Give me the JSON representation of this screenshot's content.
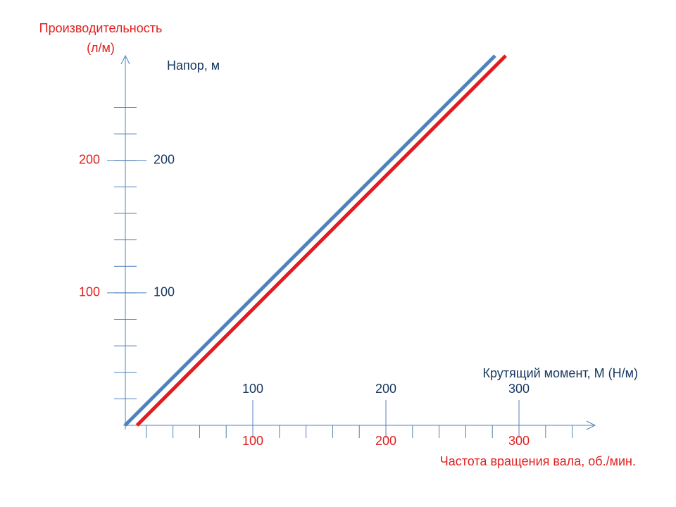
{
  "chart_data": {
    "type": "line",
    "xlim": [
      0,
      355
    ],
    "ylim": [
      0,
      278
    ],
    "x_minor_ticks": [
      20,
      40,
      60,
      80,
      100,
      120,
      140,
      160,
      180,
      200,
      220,
      240,
      260,
      280,
      300,
      320,
      340
    ],
    "y_minor_ticks": [
      20,
      40,
      60,
      80,
      100,
      120,
      140,
      160,
      180,
      200,
      220,
      240
    ],
    "x_axes": [
      {
        "label": "Крутящий момент, М (Н/м)",
        "ticks": [
          100,
          200,
          300
        ],
        "color": "#17375e",
        "side": "top"
      },
      {
        "label": "Частота вращения вала, об./мин.",
        "ticks": [
          100,
          200,
          300
        ],
        "color": "#e0201f",
        "side": "bottom"
      }
    ],
    "y_axes": [
      {
        "label": "Производительность\n(л/м)",
        "ticks": [
          100,
          200
        ],
        "color": "#e0201f",
        "side": "left"
      },
      {
        "label": "Напор, м",
        "ticks": [
          100,
          200
        ],
        "color": "#17375e",
        "side": "right"
      }
    ],
    "series": [
      {
        "color": "#4f81bd",
        "x": [
          4,
          282
        ],
        "values": [
          0,
          279
        ]
      },
      {
        "color": "#e41a1c",
        "x": [
          13,
          290
        ],
        "values": [
          0,
          279
        ]
      }
    ]
  }
}
